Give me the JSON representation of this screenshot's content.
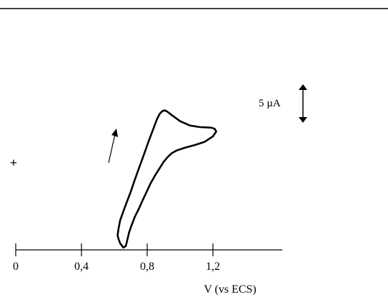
{
  "chart_data": {
    "type": "line",
    "title": "",
    "xlabel": "V (vs ECS)",
    "ylabel": "",
    "xlim": [
      0,
      1.6
    ],
    "x_ticks": [
      {
        "value": 0,
        "label": "0"
      },
      {
        "value": 0.4,
        "label": "0,4"
      },
      {
        "value": 0.8,
        "label": "0,8"
      },
      {
        "value": 1.2,
        "label": "1,2"
      }
    ],
    "scale_bar": {
      "label": "5 µA",
      "value_uA": 5
    },
    "current_sign_marker": "+",
    "scan_direction": "anodic (upward arrow on rising branch)",
    "series": [
      {
        "x": [
          0.62,
          0.625,
          0.635,
          0.66,
          0.68,
          0.7,
          0.72,
          0.745,
          0.77,
          0.79,
          0.81,
          0.83,
          0.845,
          0.86,
          0.875,
          0.89,
          0.905,
          0.92,
          0.95,
          1.0,
          1.06,
          1.12,
          1.19,
          1.21,
          1.22,
          1.2,
          1.15,
          1.09,
          1.03,
          0.98,
          0.95,
          0.925,
          0.9,
          0.875,
          0.85,
          0.82,
          0.8,
          0.775,
          0.75,
          0.725,
          0.705,
          0.69,
          0.67,
          0.655,
          0.635,
          0.625
        ],
        "y": [
          -12.8,
          -11.7,
          -10.1,
          -8.0,
          -6.4,
          -4.8,
          -3.0,
          -0.9,
          1.2,
          2.9,
          4.6,
          6.2,
          7.4,
          8.6,
          9.5,
          10.0,
          10.2,
          10.0,
          9.3,
          8.2,
          7.4,
          7.1,
          7.0,
          6.8,
          6.3,
          5.4,
          4.4,
          3.8,
          3.3,
          2.8,
          2.3,
          1.6,
          0.7,
          -0.5,
          -1.7,
          -3.3,
          -4.6,
          -6.2,
          -7.9,
          -9.4,
          -11.0,
          -12.3,
          -14.8,
          -15.1,
          -14.3,
          -13.5
        ]
      }
    ]
  }
}
